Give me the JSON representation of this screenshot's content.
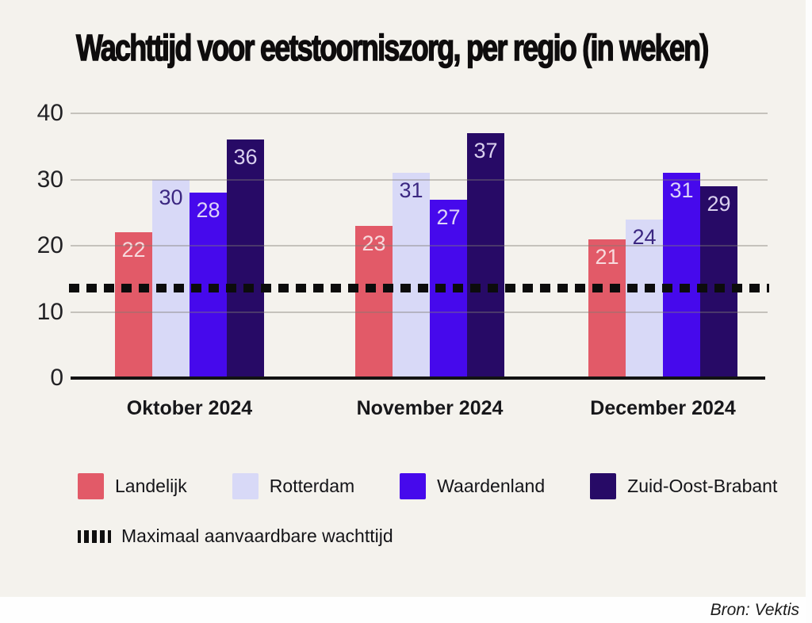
{
  "page": {
    "background_color": "#f4f2ed",
    "source_note": "Bron: Vektis"
  },
  "chart_data": {
    "type": "bar",
    "title": "Wachttijd voor eetstoorniszorg, per regio (in weken)",
    "categories": [
      "Oktober 2024",
      "November 2024",
      "December 2024"
    ],
    "series": [
      {
        "name": "Landelijk",
        "color": "#e25a68",
        "label_color": "#f7dadd",
        "values": [
          22,
          23,
          21
        ]
      },
      {
        "name": "Rotterdam",
        "color": "#d8d9f7",
        "label_color": "#3b2781",
        "values": [
          30,
          31,
          24
        ]
      },
      {
        "name": "Waardenland",
        "color": "#4609ec",
        "label_color": "#ddd4f8",
        "values": [
          28,
          27,
          31
        ]
      },
      {
        "name": "Zuid-Oost-Brabant",
        "color": "#270a66",
        "label_color": "#d9d0ee",
        "values": [
          36,
          37,
          29
        ]
      }
    ],
    "reference_line": {
      "label": "Maximaal aanvaardbare wachttijd",
      "value": 14,
      "color": "#0c0c0c",
      "style": "dashed"
    },
    "y_axis": {
      "ticks": [
        0,
        10,
        20,
        30,
        40
      ],
      "max": 40
    },
    "xlabel": "",
    "ylabel": "",
    "grid": true,
    "legend_position": "bottom",
    "axis_color": "#131313",
    "gridline_color": "#d9d6d0"
  }
}
